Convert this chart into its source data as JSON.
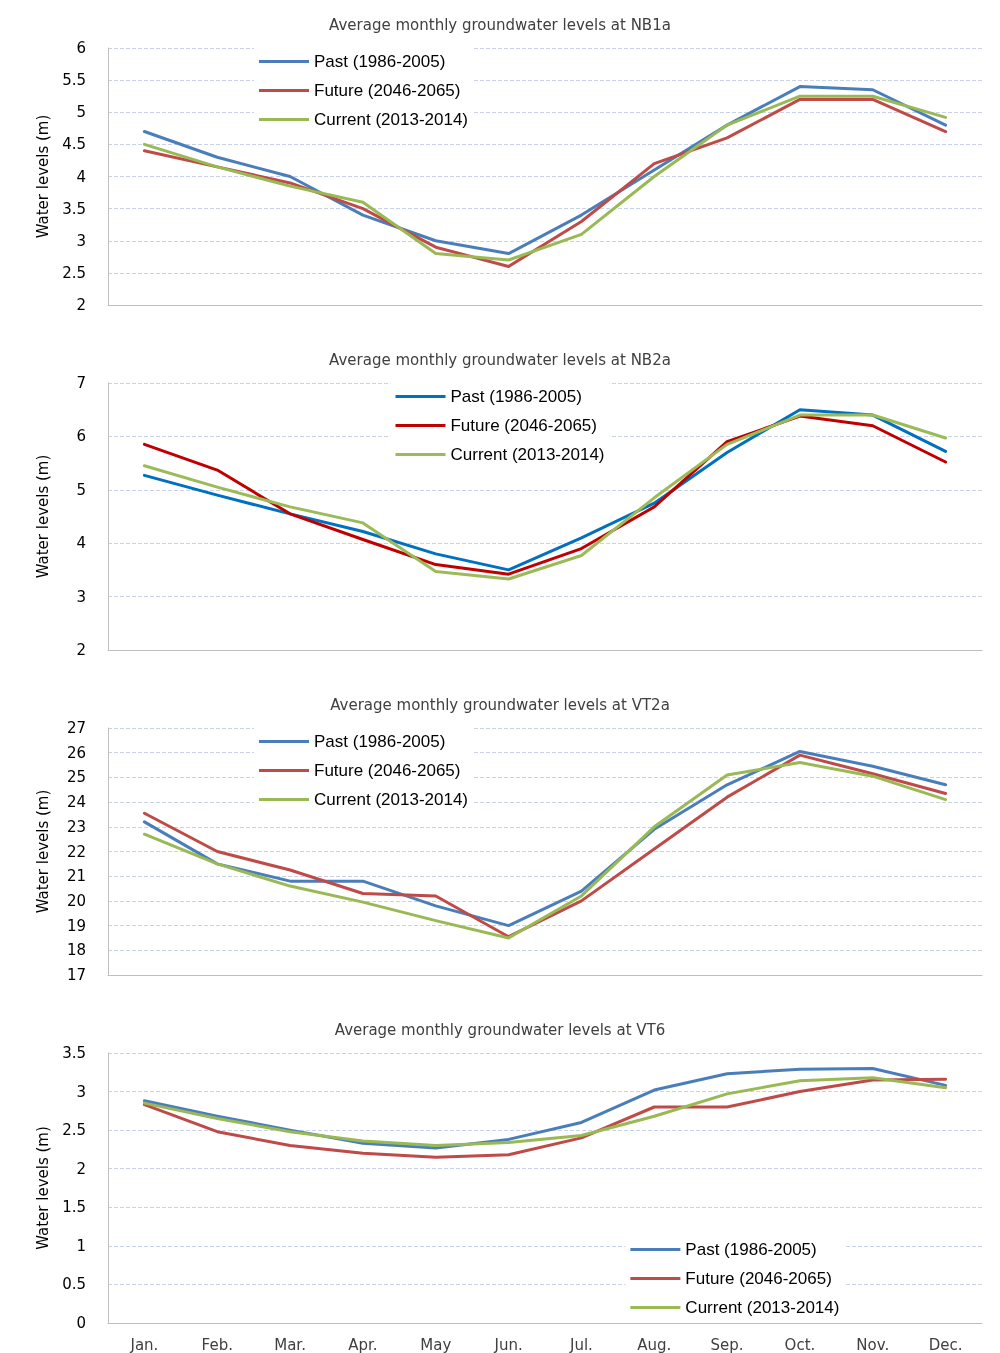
{
  "chart_data": [
    {
      "type": "line",
      "title": "Average monthly groundwater levels at NB1a",
      "ylabel": "Water levels (m)",
      "categories": [
        null,
        null,
        null,
        null,
        null,
        null,
        null,
        null,
        null,
        null,
        null,
        null
      ],
      "ylim": [
        2,
        6
      ],
      "yticks": [
        2,
        2.5,
        3,
        3.5,
        4,
        4.5,
        5,
        5.5,
        6
      ],
      "grid": "y",
      "legend": "top left",
      "marker": "none",
      "line_style": "solid",
      "series": [
        {
          "name": "Past (1986-2005)",
          "color": "#4a7ebb",
          "values": [
            4.7,
            4.3,
            4.0,
            3.4,
            3.0,
            2.8,
            3.4,
            4.1,
            4.8,
            5.4,
            5.35,
            4.8
          ]
        },
        {
          "name": "Future (2046-2065)",
          "color": "#be4b48",
          "values": [
            4.4,
            4.15,
            3.9,
            3.5,
            2.9,
            2.6,
            3.3,
            4.2,
            4.6,
            5.2,
            5.2,
            4.7
          ]
        },
        {
          "name": "Current (2013-2014)",
          "color": "#98b954",
          "values": [
            4.5,
            4.15,
            3.85,
            3.6,
            2.8,
            2.7,
            3.1,
            4.0,
            4.8,
            5.25,
            5.25,
            4.92
          ]
        }
      ]
    },
    {
      "type": "line",
      "title": "Average monthly groundwater levels at NB2a",
      "ylabel": "Water levels (m)",
      "categories": [
        null,
        null,
        null,
        null,
        null,
        null,
        null,
        null,
        null,
        null,
        null,
        null
      ],
      "ylim": [
        2,
        7
      ],
      "yticks": [
        2,
        3,
        4,
        5,
        6,
        7
      ],
      "grid": "y",
      "legend": "top",
      "marker": "none",
      "line_style": "solid",
      "series": [
        {
          "name": "Past (1986-2005)",
          "color": "#0070c0",
          "values": [
            5.27,
            4.9,
            4.55,
            4.22,
            3.8,
            3.5,
            4.1,
            4.75,
            5.7,
            6.5,
            6.4,
            5.72
          ]
        },
        {
          "name": "Future (2046-2065)",
          "color": "#c00000",
          "values": [
            5.85,
            5.37,
            4.55,
            4.07,
            3.6,
            3.42,
            3.9,
            4.68,
            5.9,
            6.38,
            6.2,
            5.52
          ]
        },
        {
          "name": "Current (2013-2014)",
          "color": "#9bbb59",
          "values": [
            5.45,
            5.05,
            4.68,
            4.38,
            3.47,
            3.33,
            3.77,
            4.85,
            5.85,
            6.4,
            6.4,
            5.97
          ]
        }
      ]
    },
    {
      "type": "line",
      "title": "Average monthly groundwater levels at VT2a",
      "ylabel": "Water levels (m)",
      "categories": [
        null,
        null,
        null,
        null,
        null,
        null,
        null,
        null,
        null,
        null,
        null,
        null
      ],
      "ylim": [
        17,
        27
      ],
      "yticks": [
        17,
        18,
        19,
        20,
        21,
        22,
        23,
        24,
        25,
        26,
        27
      ],
      "grid": "y",
      "legend": "top left",
      "marker": "none",
      "line_style": "solid",
      "series": [
        {
          "name": "Past (1986-2005)",
          "color": "#4a7ebb",
          "values": [
            23.2,
            21.5,
            20.8,
            20.8,
            19.8,
            19.0,
            20.4,
            22.9,
            24.7,
            26.05,
            25.45,
            24.7
          ]
        },
        {
          "name": "Future (2046-2065)",
          "color": "#be4b48",
          "values": [
            23.55,
            22.0,
            21.25,
            20.3,
            20.2,
            18.55,
            20.0,
            22.1,
            24.2,
            25.9,
            25.15,
            24.35
          ]
        },
        {
          "name": "Current (2013-2014)",
          "color": "#98b954",
          "values": [
            22.7,
            21.5,
            20.6,
            19.95,
            19.2,
            18.5,
            20.2,
            23.0,
            25.1,
            25.6,
            25.05,
            24.1
          ]
        }
      ]
    },
    {
      "type": "line",
      "title": "Average monthly groundwater levels at VT6",
      "ylabel": "Water levels (m)",
      "categories": [
        "Jan.",
        "Feb.",
        "Mar.",
        "Apr.",
        "May",
        "Jun.",
        "Jul.",
        "Aug.",
        "Sep.",
        "Oct.",
        "Nov.",
        "Dec."
      ],
      "ylim": [
        0,
        3.5
      ],
      "yticks": [
        0,
        0.5,
        1,
        1.5,
        2,
        2.5,
        3,
        3.5
      ],
      "grid": "y",
      "legend": "bottom right",
      "marker": "none",
      "line_style": "solid",
      "series": [
        {
          "name": "Past (1986-2005)",
          "color": "#4a7ebb",
          "values": [
            2.88,
            2.68,
            2.5,
            2.33,
            2.27,
            2.38,
            2.6,
            3.02,
            3.23,
            3.29,
            3.3,
            3.08
          ]
        },
        {
          "name": "Future (2046-2065)",
          "color": "#be4b48",
          "values": [
            2.83,
            2.48,
            2.3,
            2.2,
            2.15,
            2.18,
            2.4,
            2.8,
            2.8,
            3.0,
            3.15,
            3.16
          ]
        },
        {
          "name": "Current (2013-2014)",
          "color": "#98b954",
          "values": [
            2.85,
            2.65,
            2.48,
            2.36,
            2.3,
            2.34,
            2.43,
            2.68,
            2.97,
            3.14,
            3.18,
            3.05
          ]
        }
      ]
    }
  ]
}
